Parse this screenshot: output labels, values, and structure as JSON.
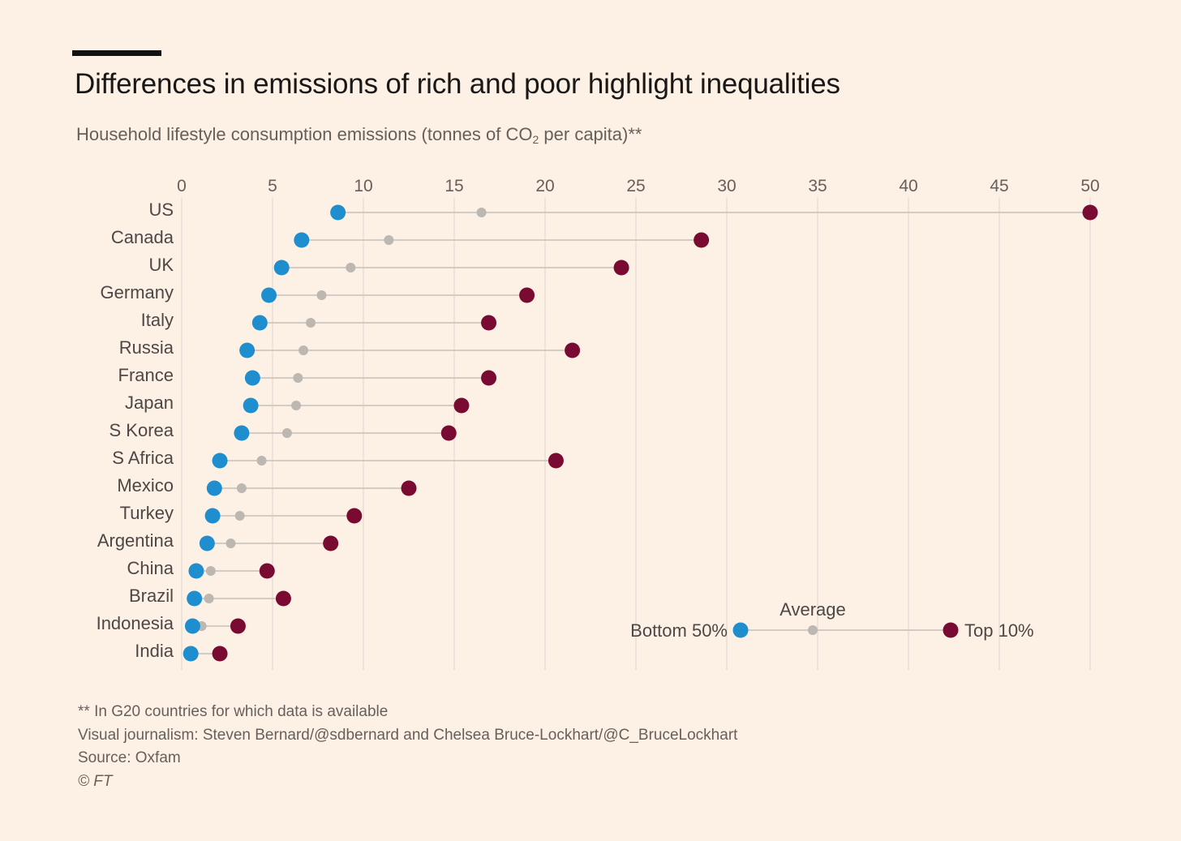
{
  "rule": "",
  "title": "Differences in emissions of rich and poor highlight inequalities",
  "subtitle": {
    "before": "Household lifestyle consumption emissions (tonnes of CO",
    "sub": "2",
    "after": " per capita)**"
  },
  "colors": {
    "background": "#fdf1e6",
    "bottom50": "#1f8ecf",
    "top10": "#790b33",
    "average": "#bdb7b2",
    "connector": "#d3ccc5",
    "gridline": "#e0d8d0"
  },
  "chart_data": {
    "type": "scatter",
    "variant": "dumbbell",
    "title": "Differences in emissions of rich and poor highlight inequalities",
    "subtitle": "Household lifestyle consumption emissions (tonnes of CO2 per capita)**",
    "xlim": [
      0,
      50
    ],
    "xticks": [
      0,
      5,
      10,
      15,
      20,
      25,
      30,
      35,
      40,
      45,
      50
    ],
    "x_axis_position": "top",
    "grid": "vertical",
    "categories": [
      "US",
      "Canada",
      "UK",
      "Germany",
      "Italy",
      "Russia",
      "France",
      "Japan",
      "S Korea",
      "S Africa",
      "Mexico",
      "Turkey",
      "Argentina",
      "China",
      "Brazil",
      "Indonesia",
      "India"
    ],
    "series": [
      {
        "name": "Bottom 50%",
        "values": [
          8.6,
          6.6,
          5.5,
          4.8,
          4.3,
          3.6,
          3.9,
          3.8,
          3.3,
          2.1,
          1.8,
          1.7,
          1.4,
          0.8,
          0.7,
          0.6,
          0.5
        ]
      },
      {
        "name": "Average",
        "values": [
          16.5,
          11.4,
          9.3,
          7.7,
          7.1,
          6.7,
          6.4,
          6.3,
          5.8,
          4.4,
          3.3,
          3.2,
          2.7,
          1.6,
          1.5,
          1.1,
          0.6
        ]
      },
      {
        "name": "Top 10%",
        "values": [
          50.0,
          28.6,
          24.2,
          19.0,
          16.9,
          21.5,
          16.9,
          15.4,
          14.7,
          20.6,
          12.5,
          9.5,
          8.2,
          4.7,
          5.6,
          3.1,
          2.1
        ]
      }
    ],
    "legend": {
      "placement": "bottom-right",
      "average_label": "Average",
      "bottom_label": "Bottom 50%",
      "top_label": "Top 10%"
    }
  },
  "footnotes": {
    "note": "** In G20 countries for which data is available",
    "credit": "Visual journalism: Steven Bernard/@sdbernard and Chelsea Bruce-Lockhart/@C_BruceLockhart",
    "source": "Source: Oxfam",
    "copyright": "© FT"
  }
}
